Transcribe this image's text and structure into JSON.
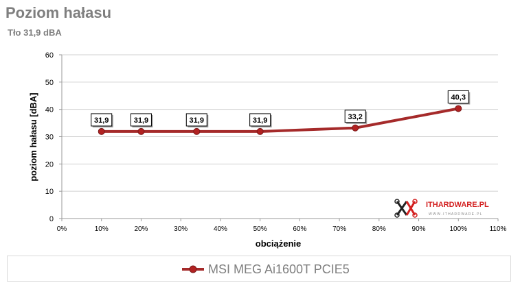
{
  "title": "Poziom hałasu",
  "subtitle": "Tło 31,9 dBA",
  "logo": {
    "brand": "ITHARDWARE.PL",
    "url_text": "W W W . I T H A R D W A R E . P L"
  },
  "chart_data": {
    "type": "line",
    "title": "",
    "xlabel": "obciążenie",
    "ylabel": "poziom hałasu [dBA]",
    "xlim": [
      0,
      110
    ],
    "ylim": [
      0,
      60
    ],
    "x_ticks": [
      "0%",
      "10%",
      "20%",
      "30%",
      "40%",
      "50%",
      "60%",
      "70%",
      "80%",
      "90%",
      "100%",
      "110%"
    ],
    "y_ticks": [
      "0",
      "10",
      "20",
      "30",
      "40",
      "50",
      "60"
    ],
    "grid": "horizontal",
    "legend": "bottom",
    "series": [
      {
        "name": "MSI MEG Ai1600T PCIE5",
        "color": "#a52a2a",
        "x": [
          10,
          20,
          34,
          50,
          74,
          100
        ],
        "y": [
          31.9,
          31.9,
          31.9,
          31.9,
          33.2,
          40.3
        ],
        "labels": [
          "31,9",
          "31,9",
          "31,9",
          "31,9",
          "33,2",
          "40,3"
        ]
      }
    ]
  }
}
